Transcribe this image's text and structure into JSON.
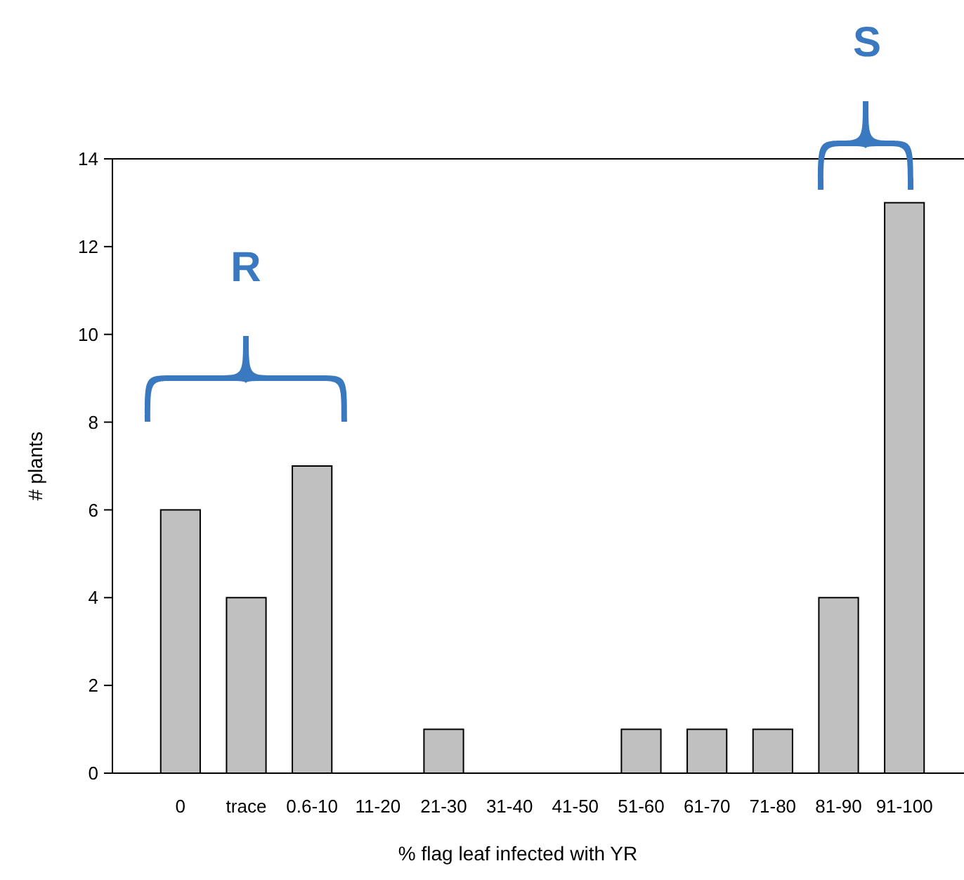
{
  "chart_data": {
    "type": "bar",
    "xlabel": "% flag leaf infected with YR",
    "ylabel": "# plants",
    "categories": [
      "0",
      "trace",
      "0.6-10",
      "11-20",
      "21-30",
      "31-40",
      "41-50",
      "51-60",
      "61-70",
      "71-80",
      "81-90",
      "91-100"
    ],
    "values": [
      6,
      4,
      7,
      0,
      1,
      0,
      0,
      1,
      1,
      1,
      4,
      13
    ],
    "color": "#c0c0c0",
    "ylim": [
      0,
      14
    ],
    "yticks": [
      0,
      2,
      4,
      6,
      8,
      10,
      12,
      14
    ],
    "grid": false,
    "annotations": [
      "R",
      "S"
    ]
  }
}
